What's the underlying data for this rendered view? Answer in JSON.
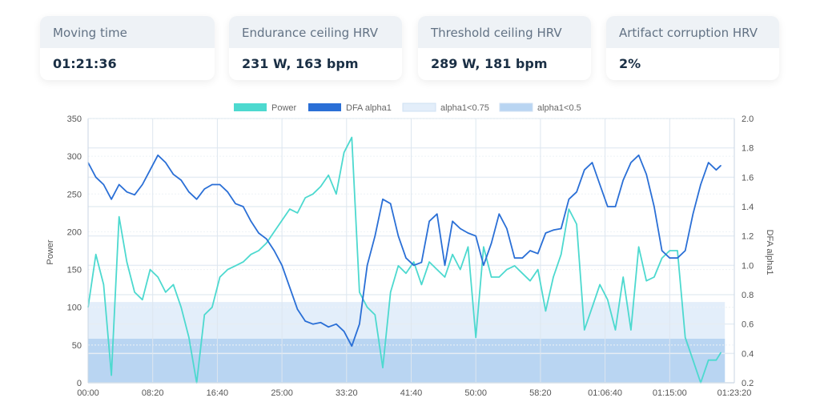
{
  "cards": [
    {
      "title": "Moving time",
      "value": "01:21:36"
    },
    {
      "title": "Endurance ceiling HRV",
      "value": "231 W, 163 bpm"
    },
    {
      "title": "Threshold ceiling HRV",
      "value": "289 W, 181 bpm"
    },
    {
      "title": "Artifact corruption HRV",
      "value": "2%"
    }
  ],
  "chart_data": {
    "type": "line",
    "title": "",
    "legend_position": "top",
    "legend": [
      {
        "label": "Power",
        "color": "#4dd9cf"
      },
      {
        "label": "DFA alpha1",
        "color": "#2a6fd6"
      },
      {
        "label": "alpha1<0.75",
        "color": "#e3eefa"
      },
      {
        "label": "alpha1<0.5",
        "color": "#b9d5f2"
      }
    ],
    "xlabel": "",
    "ylabel_left": "Power",
    "ylabel_right": "DFA alpha1",
    "xlim": [
      "00:00",
      "01:23:20"
    ],
    "ylim_left": [
      0,
      350
    ],
    "ylim_right": [
      0.2,
      2.0
    ],
    "x_ticks": [
      "00:00",
      "08:20",
      "16:40",
      "25:00",
      "33:20",
      "41:40",
      "50:00",
      "58:20",
      "01:06:40",
      "01:15:00",
      "01:23:20"
    ],
    "y_ticks_left": [
      "0",
      "50",
      "100",
      "150",
      "200",
      "250",
      "300",
      "350"
    ],
    "y_ticks_right": [
      "0.2",
      "0.4",
      "0.6",
      "0.8",
      "1.0",
      "1.2",
      "1.4",
      "1.6",
      "1.8",
      "2.0"
    ],
    "grid": true,
    "bands": [
      {
        "name": "alpha1<0.75",
        "from": 0.2,
        "to": 0.75,
        "axis": "right",
        "color": "#e3eefa"
      },
      {
        "name": "alpha1<0.5",
        "from": 0.2,
        "to": 0.5,
        "axis": "right",
        "color": "#b9d5f2"
      }
    ],
    "x": [
      "00:00",
      "01:00",
      "02:00",
      "03:00",
      "04:00",
      "05:00",
      "06:00",
      "07:00",
      "08:00",
      "09:00",
      "10:00",
      "11:00",
      "12:00",
      "13:00",
      "14:00",
      "15:00",
      "16:00",
      "17:00",
      "18:00",
      "19:00",
      "20:00",
      "21:00",
      "22:00",
      "23:00",
      "24:00",
      "25:00",
      "26:00",
      "27:00",
      "28:00",
      "29:00",
      "30:00",
      "31:00",
      "32:00",
      "33:00",
      "34:00",
      "35:00",
      "36:00",
      "37:00",
      "38:00",
      "39:00",
      "40:00",
      "41:00",
      "42:00",
      "43:00",
      "44:00",
      "45:00",
      "46:00",
      "47:00",
      "48:00",
      "49:00",
      "50:00",
      "51:00",
      "52:00",
      "53:00",
      "54:00",
      "55:00",
      "56:00",
      "57:00",
      "58:00",
      "59:00",
      "01:00:00",
      "01:01:00",
      "01:02:00",
      "01:03:00",
      "01:04:00",
      "01:05:00",
      "01:06:00",
      "01:07:00",
      "01:08:00",
      "01:09:00",
      "01:10:00",
      "01:11:00",
      "01:12:00",
      "01:13:00",
      "01:14:00",
      "01:15:00",
      "01:16:00",
      "01:17:00",
      "01:18:00",
      "01:19:00",
      "01:20:00",
      "01:21:00",
      "01:21:36"
    ],
    "series": [
      {
        "name": "Power",
        "axis": "left",
        "color": "#4dd9cf",
        "values": [
          100,
          170,
          130,
          10,
          220,
          160,
          120,
          110,
          150,
          140,
          120,
          130,
          100,
          60,
          0,
          90,
          100,
          140,
          150,
          155,
          160,
          170,
          175,
          185,
          200,
          215,
          230,
          225,
          245,
          250,
          260,
          275,
          250,
          305,
          325,
          120,
          100,
          90,
          20,
          120,
          155,
          145,
          160,
          130,
          160,
          150,
          140,
          170,
          150,
          180,
          60,
          180,
          140,
          140,
          150,
          155,
          145,
          135,
          150,
          95,
          140,
          170,
          230,
          210,
          70,
          100,
          130,
          110,
          70,
          140,
          70,
          180,
          135,
          140,
          165,
          175,
          175,
          60,
          30,
          0,
          30,
          30,
          40
        ]
      },
      {
        "name": "DFA alpha1",
        "axis": "right",
        "color": "#2a6fd6",
        "values": [
          1.7,
          1.6,
          1.55,
          1.45,
          1.55,
          1.5,
          1.48,
          1.55,
          1.65,
          1.75,
          1.7,
          1.62,
          1.58,
          1.5,
          1.45,
          1.52,
          1.55,
          1.55,
          1.5,
          1.42,
          1.4,
          1.3,
          1.22,
          1.18,
          1.1,
          1.0,
          0.85,
          0.7,
          0.62,
          0.6,
          0.61,
          0.58,
          0.6,
          0.55,
          0.45,
          0.6,
          1.0,
          1.2,
          1.45,
          1.42,
          1.2,
          1.05,
          1.0,
          1.02,
          1.3,
          1.35,
          1.0,
          1.3,
          1.25,
          1.22,
          1.2,
          1.0,
          1.15,
          1.35,
          1.25,
          1.05,
          1.05,
          1.1,
          1.08,
          1.22,
          1.24,
          1.25,
          1.45,
          1.5,
          1.65,
          1.7,
          1.55,
          1.4,
          1.4,
          1.58,
          1.7,
          1.75,
          1.62,
          1.4,
          1.1,
          1.05,
          1.05,
          1.1,
          1.35,
          1.55,
          1.7,
          1.65,
          1.68
        ]
      }
    ]
  }
}
